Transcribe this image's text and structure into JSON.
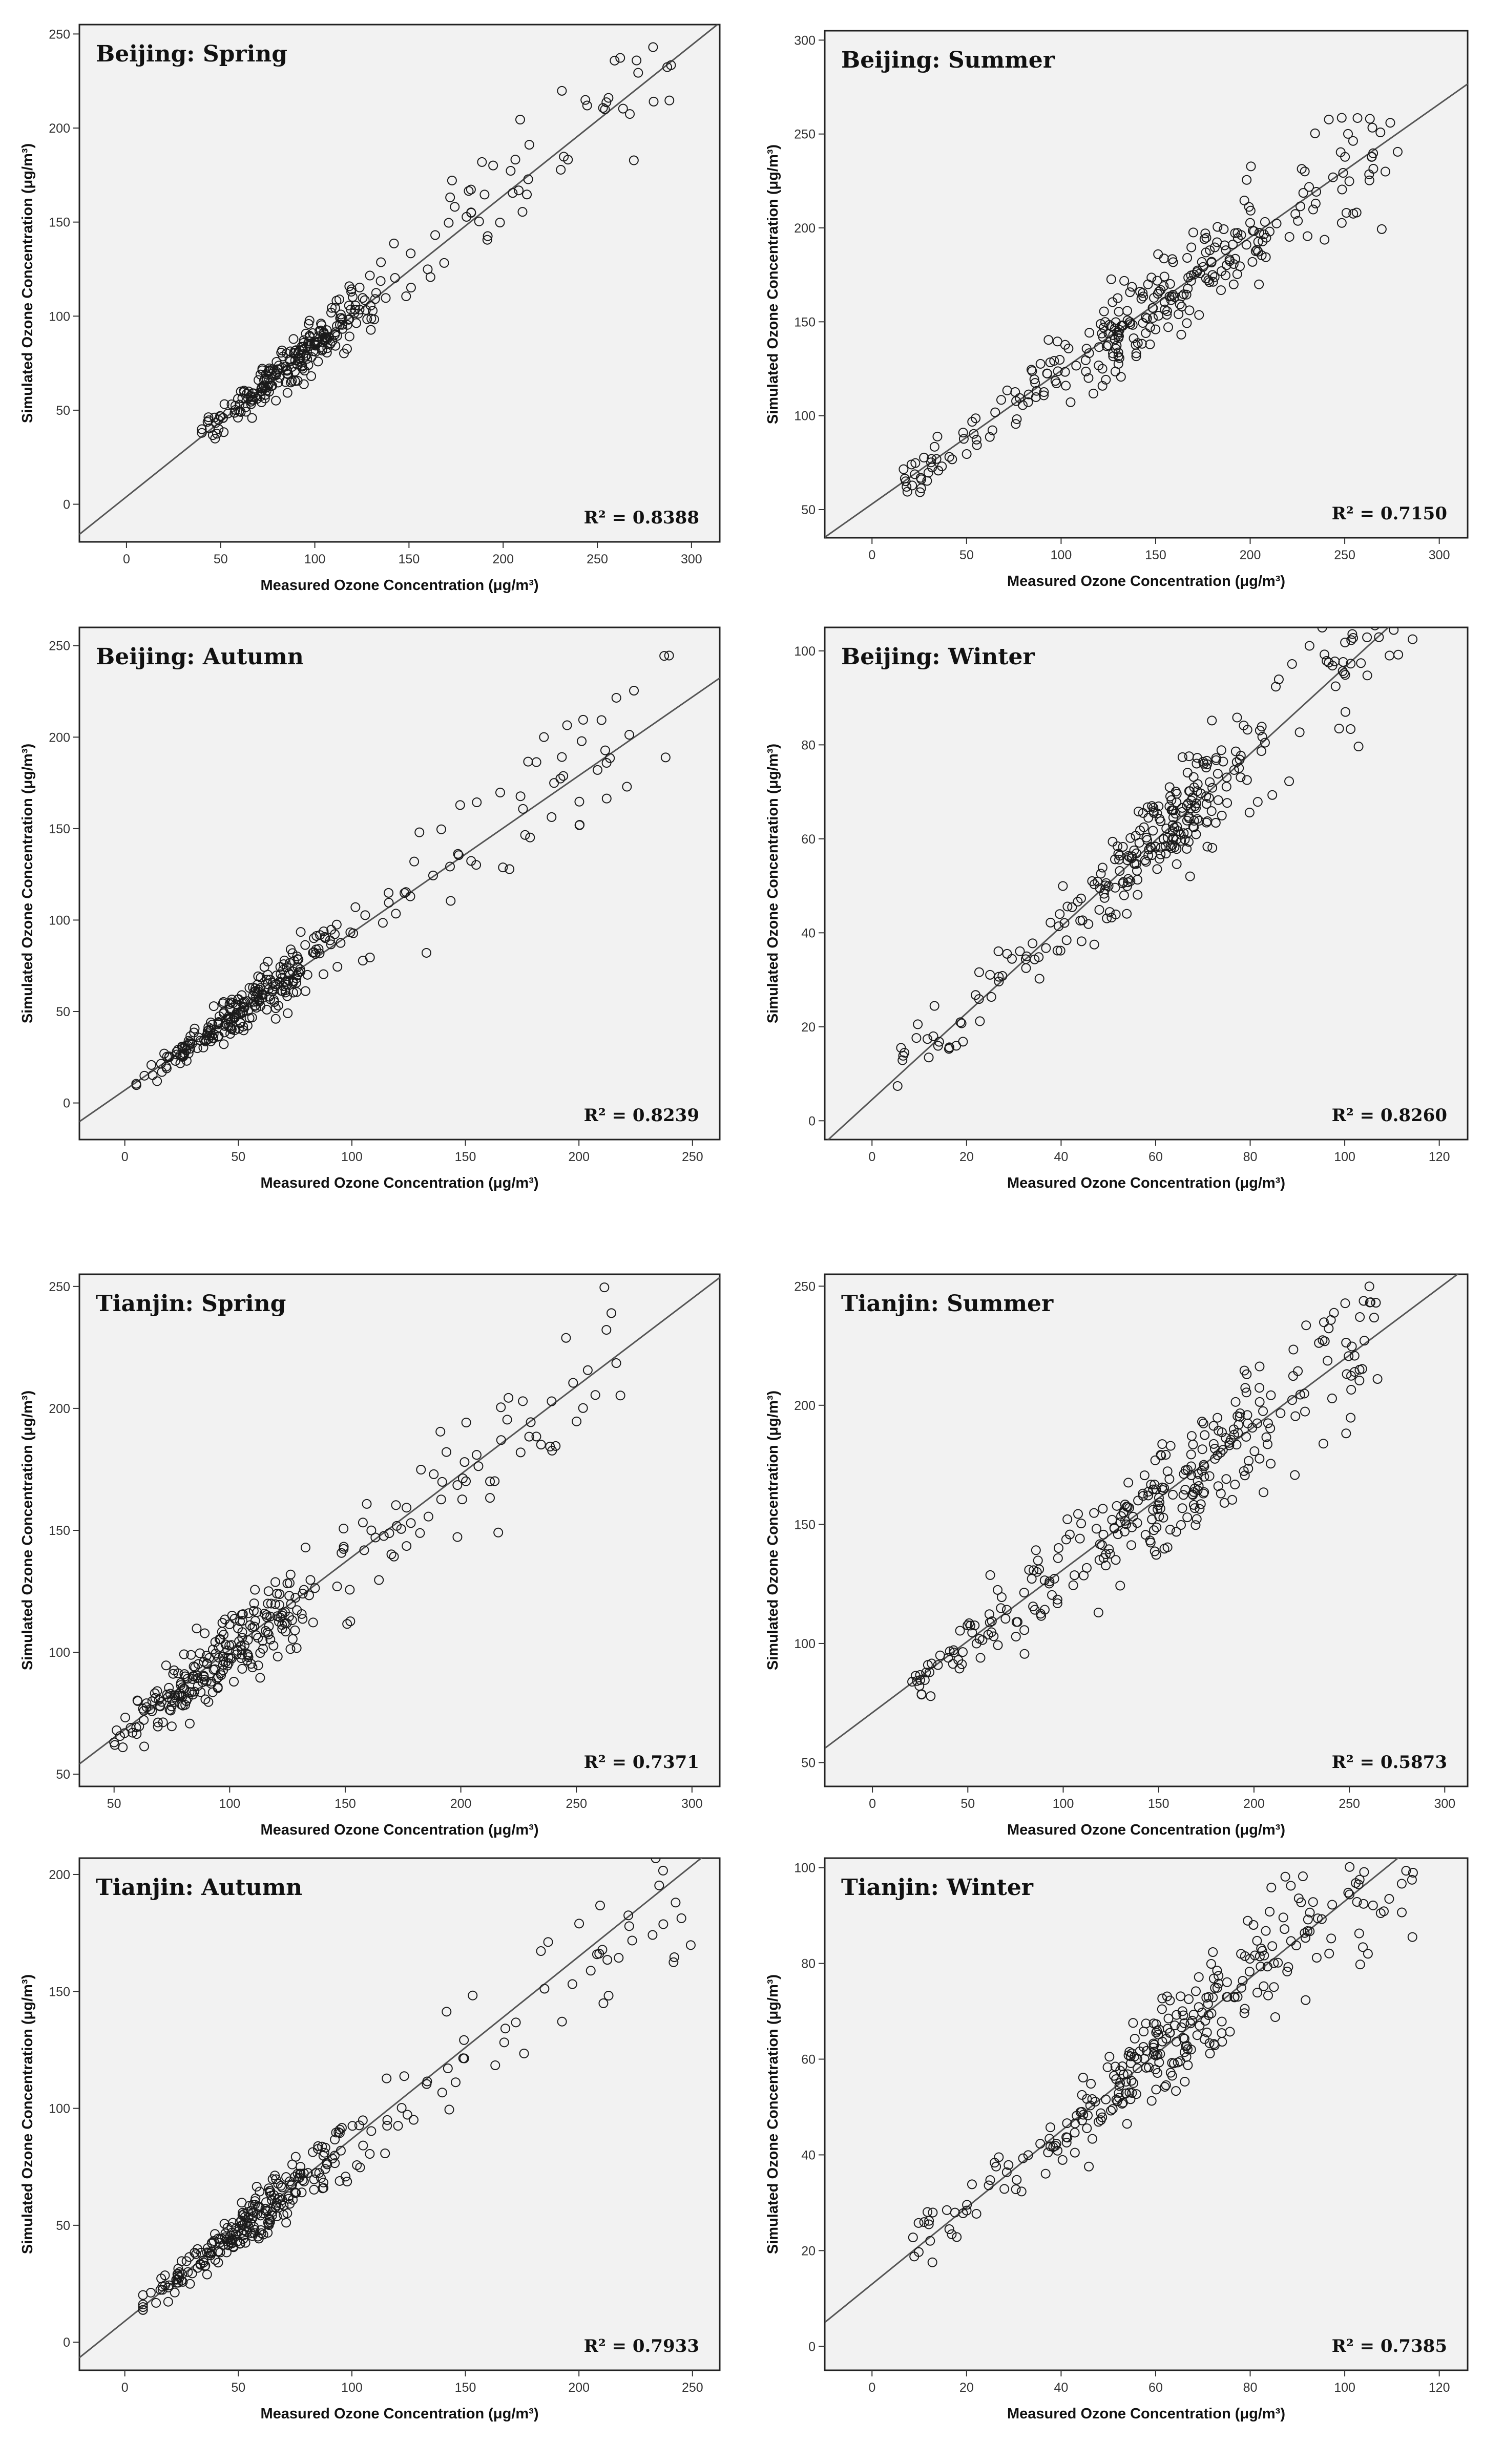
{
  "chart_data": [
    {
      "type": "scatter",
      "title": "Beijing: Spring",
      "r2": "R² = 0.8388",
      "xlabel": "Measured Ozone Concentration (μg/m³)",
      "ylabel": "Simulated Ozone Concentration (μg/m³)",
      "xlim": [
        -25,
        315
      ],
      "ylim": [
        -20,
        255
      ],
      "xticks": [
        0,
        50,
        100,
        150,
        200,
        250,
        300
      ],
      "yticks": [
        0,
        50,
        100,
        150,
        200,
        250
      ],
      "fit": {
        "slope": 0.8,
        "intercept": 4
      },
      "n": 300,
      "seed": 11,
      "xmin": 40,
      "xmax": 290,
      "center": 90,
      "density": 2.0,
      "spread": 0.15
    },
    {
      "type": "scatter",
      "title": "Beijing: Summer",
      "r2": "R² = 0.7150",
      "xlabel": "Measured Ozone Concentration (μg/m³)",
      "ylabel": "Simulated Ozone Concentration (μg/m³)",
      "xlim": [
        -25,
        315
      ],
      "ylim": [
        35,
        305
      ],
      "xticks": [
        0,
        50,
        100,
        150,
        200,
        250,
        300
      ],
      "yticks": [
        50,
        100,
        150,
        200,
        250,
        300
      ],
      "fit": {
        "slope": 0.71,
        "intercept": 53
      },
      "n": 300,
      "seed": 23,
      "xmin": 15,
      "xmax": 280,
      "center": 150,
      "density": 0.6,
      "spread": 0.13
    },
    {
      "type": "scatter",
      "title": "Beijing: Autumn",
      "r2": "R² = 0.8239",
      "xlabel": "Measured Ozone Concentration (μg/m³)",
      "ylabel": "Simulated Ozone Concentration (μg/m³)",
      "xlim": [
        -20,
        262
      ],
      "ylim": [
        -20,
        260
      ],
      "xticks": [
        0,
        50,
        100,
        150,
        200,
        250
      ],
      "yticks": [
        0,
        50,
        100,
        150,
        200,
        250
      ],
      "fit": {
        "slope": 0.86,
        "intercept": 7
      },
      "n": 300,
      "seed": 37,
      "xmin": 5,
      "xmax": 245,
      "center": 55,
      "density": 2.2,
      "spread": 0.2
    },
    {
      "type": "scatter",
      "title": "Beijing: Winter",
      "r2": "R² = 0.8260",
      "xlabel": "Measured Ozone Concentration (μg/m³)",
      "ylabel": "Simulated Ozone Concentration (μg/m³)",
      "xlim": [
        -10,
        126
      ],
      "ylim": [
        -4,
        105
      ],
      "xticks": [
        0,
        20,
        40,
        60,
        80,
        100,
        120
      ],
      "yticks": [
        0,
        20,
        40,
        60,
        80,
        100
      ],
      "fit": {
        "slope": 0.92,
        "intercept": 4.5
      },
      "n": 300,
      "seed": 41,
      "xmin": 5,
      "xmax": 115,
      "center": 62,
      "density": 1.0,
      "spread": 0.14
    },
    {
      "type": "scatter",
      "title": "Tianjin: Spring",
      "r2": "R² = 0.7371",
      "xlabel": "Measured Ozone Concentration (μg/m³)",
      "ylabel": "Simulated Ozone Concentration (μg/m³)",
      "xlim": [
        35,
        312
      ],
      "ylim": [
        45,
        255
      ],
      "xticks": [
        50,
        100,
        150,
        200,
        250,
        300
      ],
      "yticks": [
        50,
        100,
        150,
        200,
        250
      ],
      "fit": {
        "slope": 0.72,
        "intercept": 29
      },
      "n": 300,
      "seed": 53,
      "xmin": 50,
      "xmax": 270,
      "center": 95,
      "density": 1.8,
      "spread": 0.13
    },
    {
      "type": "scatter",
      "title": "Tianjin: Summer",
      "r2": "R² = 0.5873",
      "xlabel": "Measured Ozone Concentration (μg/m³)",
      "ylabel": "Simulated Ozone Concentration (μg/m³)",
      "xlim": [
        -25,
        312
      ],
      "ylim": [
        40,
        255
      ],
      "xticks": [
        0,
        50,
        100,
        150,
        200,
        250,
        300
      ],
      "yticks": [
        50,
        100,
        150,
        200,
        250
      ],
      "fit": {
        "slope": 0.6,
        "intercept": 71
      },
      "n": 300,
      "seed": 67,
      "xmin": 20,
      "xmax": 265,
      "center": 170,
      "density": 0.5,
      "spread": 0.12
    },
    {
      "type": "scatter",
      "title": "Tianjin: Autumn",
      "r2": "R² = 0.7933",
      "xlabel": "Measured Ozone Concentration (μg/m³)",
      "ylabel": "Simulated Ozone Concentration (μg/m³)",
      "xlim": [
        -20,
        262
      ],
      "ylim": [
        -12,
        207
      ],
      "xticks": [
        0,
        50,
        100,
        150,
        200,
        250
      ],
      "yticks": [
        0,
        50,
        100,
        150,
        200
      ],
      "fit": {
        "slope": 0.78,
        "intercept": 9
      },
      "n": 300,
      "seed": 79,
      "xmin": 8,
      "xmax": 250,
      "center": 55,
      "density": 1.8,
      "spread": 0.17
    },
    {
      "type": "scatter",
      "title": "Tianjin: Winter",
      "r2": "R² = 0.7385",
      "xlabel": "Measured Ozone Concentration (μg/m³)",
      "ylabel": "Simulated Ozone Concentration (μg/m³)",
      "xlim": [
        -10,
        126
      ],
      "ylim": [
        -5,
        102
      ],
      "xticks": [
        0,
        20,
        40,
        60,
        80,
        100,
        120
      ],
      "yticks": [
        0,
        20,
        40,
        60,
        80,
        100
      ],
      "fit": {
        "slope": 0.8,
        "intercept": 13
      },
      "n": 300,
      "seed": 97,
      "xmin": 8,
      "xmax": 115,
      "center": 60,
      "density": 0.6,
      "spread": 0.13
    }
  ]
}
